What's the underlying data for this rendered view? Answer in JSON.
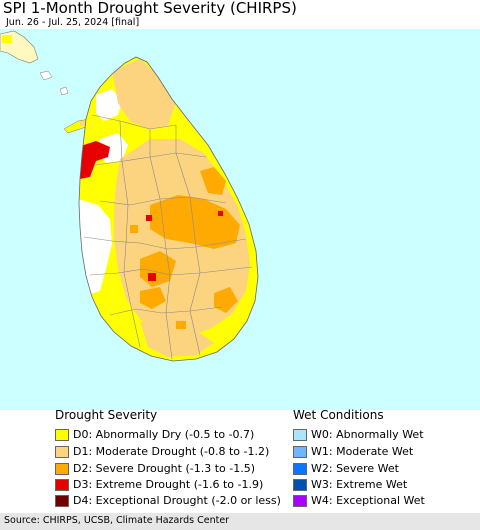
{
  "title": "SPI 1-Month Drought Severity (CHIRPS)",
  "subtitle": "Jun. 26 - Jul. 25, 2024 [final]",
  "colors": {
    "sea": "#ccffff",
    "land_base": "#ffffff",
    "D0": "#ffff00",
    "D1": "#fcd37f",
    "D2": "#ffaa00",
    "D3": "#e60000",
    "D4": "#730000",
    "W0": "#aae5ff",
    "W1": "#6fb5ff",
    "W2": "#0a75ff",
    "W3": "#0050b4",
    "W4": "#aa00ff"
  },
  "legend": {
    "drought_heading": "Drought Severity",
    "wet_heading": "Wet Conditions",
    "drought_items": [
      {
        "code": "D0",
        "label": "D0: Abnormally Dry (-0.5 to -0.7)"
      },
      {
        "code": "D1",
        "label": "D1: Moderate Drought (-0.8 to -1.2)"
      },
      {
        "code": "D2",
        "label": "D2: Severe Drought (-1.3 to -1.5)"
      },
      {
        "code": "D3",
        "label": "D3: Extreme Drought (-1.6 to -1.9)"
      },
      {
        "code": "D4",
        "label": "D4: Exceptional Drought (-2.0 or less)"
      }
    ],
    "wet_items": [
      {
        "code": "W0",
        "label": "W0: Abnormally Wet"
      },
      {
        "code": "W1",
        "label": "W1: Moderate Wet"
      },
      {
        "code": "W2",
        "label": "W2: Severe Wet"
      },
      {
        "code": "W3",
        "label": "W3: Extreme Wet"
      },
      {
        "code": "W4",
        "label": "W4: Exceptional Wet"
      }
    ]
  },
  "footer": "Source: CHIRPS, UCSB, Climate Hazards Center"
}
